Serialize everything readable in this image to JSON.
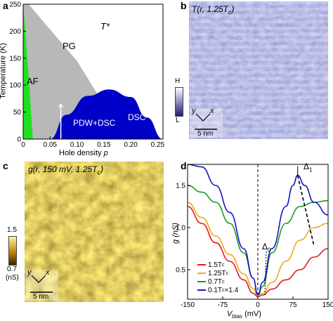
{
  "panels": {
    "a": {
      "label": "a",
      "xlabel_prefix": "Hole density ",
      "xlabel_var": "p",
      "ylabel": "Temperature (K)",
      "xticks": [
        "0",
        "0.05",
        "0.10",
        "0.15",
        "0.20",
        "0.25"
      ],
      "yticks": [
        "0",
        "50",
        "100",
        "150",
        "200",
        "250"
      ],
      "regions": {
        "af": "AF",
        "pg": "PG",
        "tstar": "T*",
        "tc_T": "T",
        "tc_sub": "c",
        "pdw": "PDW+DSC",
        "dsc": "DSC"
      }
    },
    "b": {
      "label": "b",
      "title": "T(r, 1.25T",
      "title_end": ")",
      "title_sub": "c",
      "colorbar_high": "H",
      "colorbar_low": "L",
      "axes_y": "y",
      "axes_x": "x",
      "scalebar": "5 nm"
    },
    "c": {
      "label": "c",
      "title": "g(r, 150 mV, 1.25T",
      "title_end": ")",
      "title_sub": "c",
      "colorbar_high": "1.5",
      "colorbar_low": "0.7",
      "colorbar_unit": "(nS)",
      "axes_y": "y",
      "axes_x": "x",
      "scalebar": "5 nm"
    },
    "d": {
      "label": "d",
      "ylabel": "g (nS)",
      "xlabel_v": "V",
      "xlabel_sub": "bias",
      "xlabel_unit": " (mV)",
      "xticks": [
        "-150",
        "-75",
        "0",
        "75",
        "150"
      ],
      "yticks": [
        "0.5",
        "1.0",
        "1.5"
      ],
      "delta0": "Δ",
      "delta0_sub": "0",
      "delta1": "Δ",
      "delta1_sub": "1",
      "legend": [
        {
          "text": "1.5T",
          "sub": "c",
          "tail": "",
          "color": "#e41a1c"
        },
        {
          "text": "1.25T",
          "sub": "c",
          "tail": "",
          "color": "#f0a81e"
        },
        {
          "text": "0.7T",
          "sub": "c",
          "tail": "",
          "color": "#1a9a2a"
        },
        {
          "text": "0.1T",
          "sub": "c",
          "tail": " ×1.4",
          "color": "#1616c8"
        }
      ]
    }
  },
  "colors": {
    "af": "#1fe01f",
    "pg": "#b8b8b8",
    "sc": "#0000c8",
    "map_b": "#6d74c8",
    "map_c": "#b89020"
  },
  "chart_data": [
    {
      "type": "area",
      "panel": "a",
      "xlabel": "Hole density p",
      "ylabel": "Temperature (K)",
      "xlim": [
        0,
        0.26
      ],
      "ylim": [
        0,
        250
      ],
      "af_boundary": {
        "x": [
          0.0,
          0.01,
          0.018
        ],
        "y": [
          250,
          120,
          0
        ]
      },
      "pg_boundary": {
        "x": [
          0.01,
          0.1,
          0.19
        ],
        "y": [
          250,
          145,
          0
        ]
      },
      "tc_dome": {
        "x": [
          0.05,
          0.08,
          0.12,
          0.16,
          0.2,
          0.23,
          0.26
        ],
        "y": [
          0,
          45,
          80,
          92,
          78,
          40,
          0
        ]
      },
      "pdw_marker_x": 0.07
    },
    {
      "type": "line",
      "panel": "d",
      "xlabel": "V_bias (mV)",
      "ylabel": "g (nS)",
      "xlim": [
        -150,
        150
      ],
      "ylim": [
        0.15,
        1.75
      ],
      "series": [
        {
          "name": "1.5Tc",
          "color": "#e41a1c",
          "x": [
            -150,
            -120,
            -90,
            -60,
            -30,
            -10,
            0,
            10,
            30,
            60,
            90,
            120,
            150
          ],
          "y": [
            1.25,
            1.05,
            0.82,
            0.6,
            0.38,
            0.22,
            0.18,
            0.2,
            0.27,
            0.38,
            0.5,
            0.65,
            0.75
          ]
        },
        {
          "name": "1.25Tc",
          "color": "#f0a81e",
          "x": [
            -150,
            -120,
            -90,
            -60,
            -30,
            -10,
            0,
            10,
            30,
            60,
            90,
            120,
            150
          ],
          "y": [
            1.3,
            1.12,
            0.9,
            0.68,
            0.45,
            0.28,
            0.2,
            0.22,
            0.35,
            0.6,
            0.85,
            1.0,
            1.05
          ]
        },
        {
          "name": "0.7Tc",
          "color": "#1a9a2a",
          "x": [
            -150,
            -120,
            -90,
            -60,
            -30,
            -10,
            0,
            10,
            30,
            60,
            90,
            120,
            150
          ],
          "y": [
            1.5,
            1.42,
            1.3,
            1.05,
            0.7,
            0.4,
            0.2,
            0.3,
            0.7,
            1.05,
            1.25,
            1.3,
            1.32
          ]
        },
        {
          "name": "0.1Tc ×1.4",
          "color": "#1616c8",
          "x": [
            -150,
            -120,
            -90,
            -60,
            -30,
            -10,
            0,
            10,
            30,
            60,
            75,
            85,
            100,
            120,
            150
          ],
          "y": [
            1.75,
            1.72,
            1.5,
            1.18,
            0.75,
            0.4,
            0.2,
            0.35,
            0.75,
            1.25,
            1.5,
            1.62,
            1.5,
            1.3,
            1.15
          ]
        }
      ],
      "delta0_x": 15,
      "delta1_x": 85
    }
  ]
}
